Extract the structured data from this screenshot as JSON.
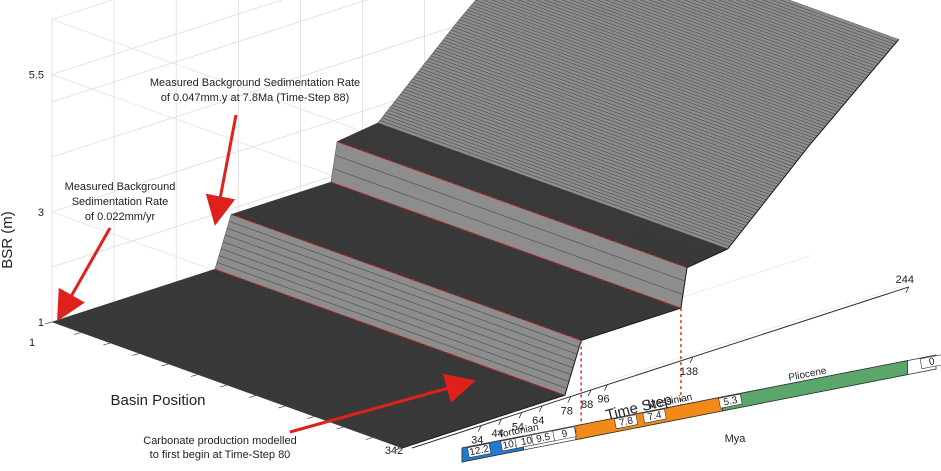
{
  "chart_data": {
    "type": "area",
    "title": "",
    "view": "3d-surface",
    "zlabel": "BSR (m)",
    "ylabel": "Basin Position",
    "xlabel": "Time Step",
    "timescale_label": "Mya",
    "z_ticks": [
      "1",
      "3",
      "5.5"
    ],
    "zlim": [
      1,
      5.5
    ],
    "basin_position_ticks": [
      "1",
      "342"
    ],
    "time_step_ticks": [
      "34",
      "44",
      "54",
      "64",
      "78",
      "88",
      "96",
      "138",
      "244"
    ],
    "surface_profile": {
      "time_step": [
        0,
        80,
        88,
        137,
        140,
        160,
        200,
        244
      ],
      "bsr_m": [
        1.0,
        1.0,
        1.9,
        1.9,
        2.6,
        2.7,
        4.1,
        5.5
      ]
    },
    "stages": [
      {
        "name": "Tortonian",
        "color": "#1f7bd1"
      },
      {
        "name": "Messinian",
        "color": "#f28a1a"
      },
      {
        "name": "Pliocene",
        "color": "#5aa66b"
      }
    ],
    "age_markers": [
      "12.2",
      "10.4",
      "10",
      "9.5",
      "9",
      "7.8",
      "7.4",
      "5.3",
      "0"
    ],
    "annotations": [
      {
        "id": "bsr-022",
        "lines": [
          "Measured Background",
          "Sedimentation Rate",
          "of 0.022mm/yr"
        ]
      },
      {
        "id": "bsr-047",
        "lines": [
          "Measured Background Sedimentation Rate",
          "of 0.047mm.y at 7.8Ma (Time-Step 88)"
        ]
      },
      {
        "id": "carbonate",
        "lines": [
          "Carbonate production modelled",
          "to first begin at Time-Step 80"
        ]
      }
    ],
    "colors": {
      "surface_dark": "#3d3d3d",
      "surface_light": "#8d8d8d",
      "marker_line": "#e0201a",
      "arrow": "#e0201a"
    }
  }
}
